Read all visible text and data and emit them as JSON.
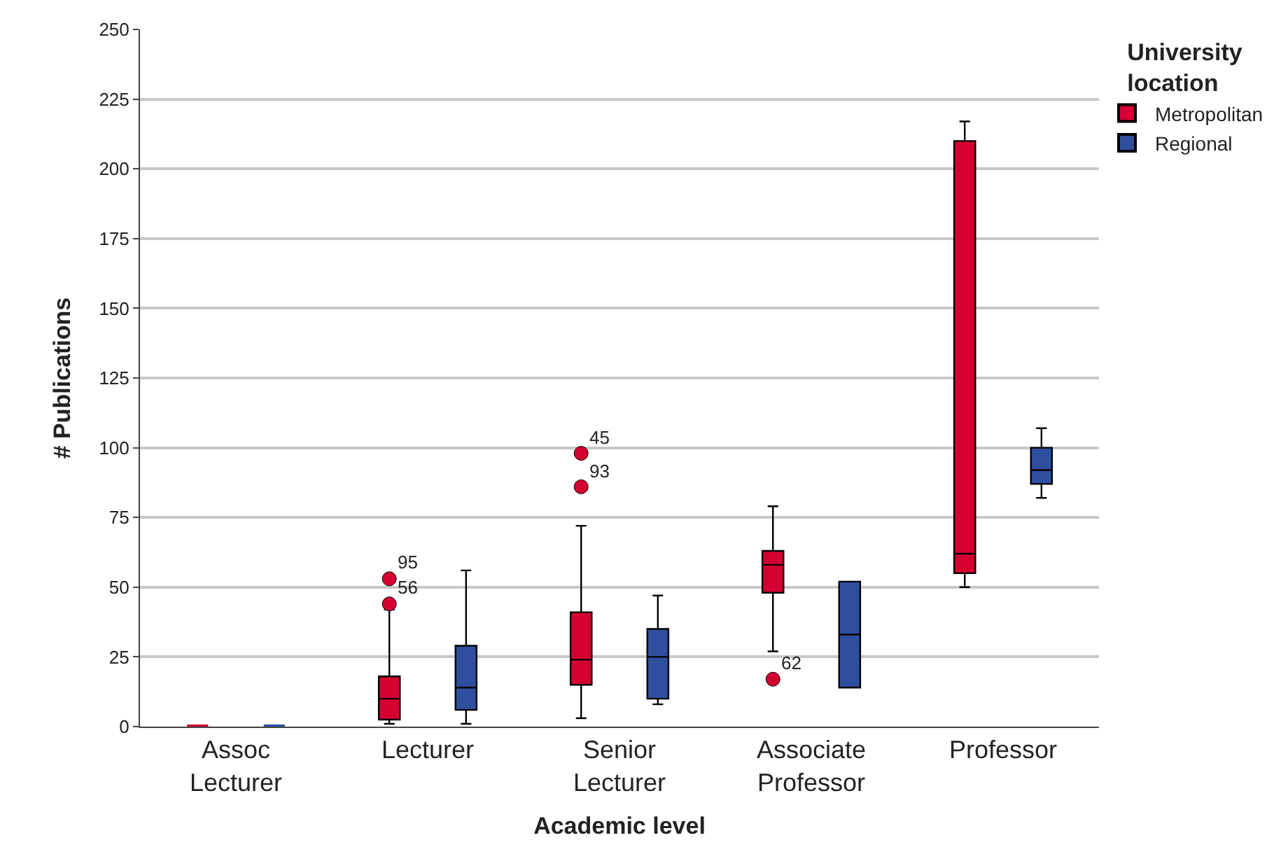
{
  "chart_data": {
    "type": "box",
    "xlabel": "Academic level",
    "ylabel": "# Publications",
    "legend_title": "University location",
    "categories": [
      "Assoc Lecturer",
      "Lecturer",
      "Senior Lecturer",
      "Associate Professor",
      "Professor"
    ],
    "ylim": [
      0,
      250
    ],
    "yticks": [
      0,
      25,
      50,
      75,
      100,
      125,
      150,
      175,
      200,
      225,
      250
    ],
    "grid": "y",
    "legend": "top right",
    "series": [
      {
        "name": "Metropolitan",
        "color": "#d40032",
        "boxes": [
          {
            "low": 0,
            "q1": 0,
            "median": 0,
            "q3": 0,
            "high": 0
          },
          {
            "low": 1,
            "q1": 2.5,
            "median": 10,
            "q3": 18,
            "high": 42,
            "outliers": [
              53,
              44
            ]
          },
          {
            "low": 3,
            "q1": 15,
            "median": 24,
            "q3": 41,
            "high": 72,
            "outliers": [
              98,
              86
            ]
          },
          {
            "low": 27,
            "q1": 48,
            "median": 58,
            "q3": 63,
            "high": 79,
            "outliers": [
              17
            ]
          },
          {
            "low": 50,
            "q1": 55,
            "median": 62,
            "q3": 210,
            "high": 217
          }
        ]
      },
      {
        "name": "Regional",
        "color": "#2f4f9e",
        "boxes": [
          {
            "low": 0,
            "q1": 0,
            "median": 0,
            "q3": 0,
            "high": 0
          },
          {
            "low": 1,
            "q1": 6,
            "median": 14,
            "q3": 29,
            "high": 56
          },
          {
            "low": 8,
            "q1": 10,
            "median": 25,
            "q3": 35,
            "high": 47
          },
          {
            "low": 14,
            "q1": 14,
            "median": 33,
            "q3": 52,
            "high": 52
          },
          {
            "low": 82,
            "q1": 87,
            "median": 92,
            "q3": 100,
            "high": 107
          }
        ]
      }
    ],
    "annotations": [
      "95",
      "56",
      "45",
      "93",
      "62"
    ]
  }
}
